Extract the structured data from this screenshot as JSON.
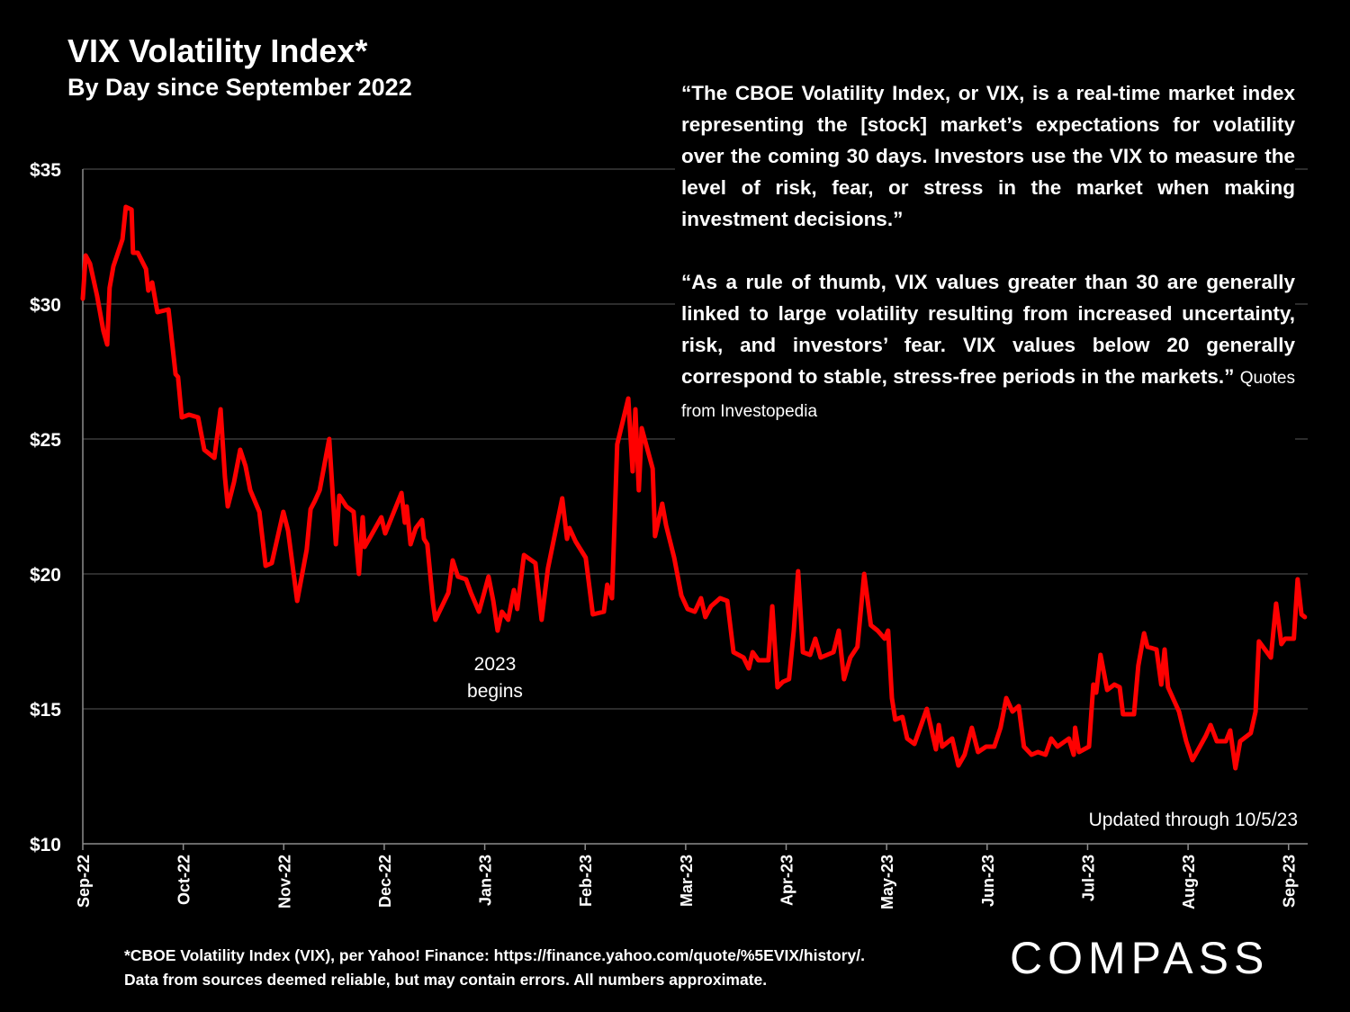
{
  "chart_data": {
    "type": "line",
    "title": "VIX Volatility Index*",
    "subtitle": "By Day since September 2022",
    "color": "#ff0000",
    "grid": true,
    "x": [
      0,
      0.6,
      1.5,
      3,
      4.3,
      5.1,
      5.6,
      6.4,
      8.3,
      9,
      10.2,
      10.5,
      11.5,
      13.2,
      13.7,
      14.5,
      15.6,
      17.9,
      19.4,
      19.9,
      20.7,
      22.2,
      24.1,
      25.4,
      27.5,
      28.8,
      29.7,
      30.3,
      31.6,
      32.9,
      34,
      35,
      36.9,
      38.2,
      39.5,
      41.9,
      42.9,
      44.8,
      46.8,
      47.6,
      48.5,
      49.5,
      51.5,
      52.9,
      53.6,
      55.1,
      56.6,
      57.7,
      58.5,
      58.9,
      60.2,
      62.4,
      63.2,
      66.6,
      67.3,
      67.7,
      68.5,
      69.6,
      70.9,
      71.3,
      72,
      73.2,
      73.7,
      76.4,
      77.3,
      78.4,
      80.1,
      81.1,
      82.8,
      83.9,
      84.8,
      85.8,
      86.7,
      87.6,
      88.9,
      90.1,
      90.8,
      92.2,
      94.6,
      95.9,
      97.2,
      100.2,
      101.2,
      101.7,
      103,
      105.1,
      106.6,
      108.9,
      109.6,
      110.6,
      111.7,
      114,
      114.9,
      115.5,
      116.2,
      116.8,
      119.1,
      119.6,
      121.1,
      121.9,
      123.6,
      125.1,
      126.4,
      127.9,
      129.2,
      130.1,
      131.3,
      133.2,
      134.7,
      136,
      138.1,
      139.2,
      140,
      141.2,
      143.3,
      144.1,
      145.2,
      146.3,
      147.6,
      148.6,
      149.5,
      150.5,
      152,
      153.1,
      154.2,
      156.9,
      158,
      159.1,
      160.4,
      161.9,
      163.3,
      164.7,
      166.1,
      167.6,
      168.3,
      169.1,
      169.8,
      171.3,
      172.3,
      173.8,
      176.4,
      178.3,
      178.9,
      179.6,
      181.7,
      183,
      184.3,
      185.8,
      187.1,
      188.8,
      190.5,
      191.8,
      193,
      194.3,
      195.6,
      196.7,
      198.3,
      199.6,
      201.2,
      202.4,
      203.7,
      206.1,
      207.1,
      207.4,
      208.2,
      210.3,
      211.2,
      211.8,
      212.7,
      214.1,
      215.6,
      216.7,
      217.4,
      219.7,
      220.6,
      221.8,
      222.5,
      224.4,
      225.4,
      226.1,
      226.8,
      229.1,
      230.6,
      231.9,
      234.7,
      235.7,
      237,
      238.9,
      239.8,
      240.9,
      241.9,
      244.1,
      245.1,
      245.8,
      248.3,
      249.4,
      250.5,
      251.3,
      253.1,
      253.9,
      254.7,
      255.4
    ],
    "values": [
      30.2,
      31.8,
      31.5,
      30.3,
      29,
      28.5,
      30.6,
      31.4,
      32.4,
      33.6,
      33.5,
      31.9,
      31.9,
      31.3,
      30.5,
      30.8,
      29.7,
      29.8,
      27.4,
      27.3,
      25.8,
      25.9,
      25.8,
      24.6,
      24.3,
      26.1,
      23.6,
      22.5,
      23.4,
      24.6,
      24,
      23.1,
      22.3,
      20.3,
      20.4,
      22.3,
      21.6,
      19,
      20.9,
      22.4,
      22.7,
      23.1,
      25,
      21.1,
      22.9,
      22.5,
      22.3,
      20,
      22.1,
      21,
      21.4,
      22.1,
      21.5,
      23,
      21.9,
      22.5,
      21.1,
      21.7,
      22,
      21.3,
      21.1,
      18.9,
      18.3,
      19.3,
      20.5,
      19.9,
      19.8,
      19.3,
      18.6,
      19.3,
      19.9,
      19,
      17.9,
      18.6,
      18.3,
      19.4,
      18.7,
      20.7,
      20.4,
      18.3,
      20.2,
      22.8,
      21.3,
      21.7,
      21.2,
      20.6,
      18.5,
      18.6,
      19.6,
      19.1,
      24.8,
      26.5,
      23.8,
      26.1,
      23.1,
      25.4,
      23.9,
      21.4,
      22.6,
      21.8,
      20.6,
      19.2,
      18.7,
      18.6,
      19.1,
      18.4,
      18.8,
      19.1,
      19,
      17.1,
      16.9,
      16.5,
      17.1,
      16.8,
      16.8,
      18.8,
      15.8,
      16,
      16.1,
      17.9,
      20.1,
      17.1,
      17,
      17.6,
      16.9,
      17.1,
      17.9,
      16.1,
      16.9,
      17.3,
      20,
      18.1,
      17.9,
      17.6,
      17.9,
      15.4,
      14.6,
      14.7,
      13.9,
      13.7,
      15,
      13.5,
      14.4,
      13.6,
      13.9,
      12.9,
      13.3,
      14.3,
      13.4,
      13.6,
      13.6,
      14.3,
      15.4,
      14.9,
      15.1,
      13.6,
      13.3,
      13.4,
      13.3,
      13.9,
      13.6,
      13.9,
      13.3,
      14.3,
      13.4,
      13.6,
      15.9,
      15.6,
      17,
      15.7,
      15.9,
      15.8,
      14.8,
      14.8,
      16.6,
      17.8,
      17.3,
      17.2,
      15.9,
      17.2,
      15.8,
      14.9,
      13.8,
      13.1,
      14,
      14.4,
      13.8,
      13.8,
      14.2,
      12.8,
      13.8,
      14.1,
      14.9,
      17.5,
      16.9,
      18.9,
      17.4,
      17.6,
      17.6,
      19.8,
      18.5,
      18.4
    ],
    "xlim": [
      0,
      256
    ],
    "xticks": [
      {
        "value": 0,
        "label": "Sep-22"
      },
      {
        "value": 21,
        "label": "Oct-22"
      },
      {
        "value": 42,
        "label": "Nov-22"
      },
      {
        "value": 63,
        "label": "Dec-22"
      },
      {
        "value": 84,
        "label": "Jan-23"
      },
      {
        "value": 105,
        "label": "Feb-23"
      },
      {
        "value": 126,
        "label": "Mar-23"
      },
      {
        "value": 147,
        "label": "Apr-23"
      },
      {
        "value": 168,
        "label": "May-23"
      },
      {
        "value": 189,
        "label": "Jun-23"
      },
      {
        "value": 210,
        "label": "Jul-23"
      },
      {
        "value": 231,
        "label": "Aug-23"
      },
      {
        "value": 252,
        "label": "Sep-23"
      }
    ],
    "ylim": [
      10,
      35
    ],
    "yticks": [
      {
        "value": 10,
        "label": "$10"
      },
      {
        "value": 15,
        "label": "$15"
      },
      {
        "value": 20,
        "label": "$20"
      },
      {
        "value": 25,
        "label": "$25"
      },
      {
        "value": 30,
        "label": "$30"
      },
      {
        "value": 35,
        "label": "$35"
      }
    ],
    "quote": [
      "“The CBOE Volatility Index, or VIX, is a real-time market index representing the [stock] market’s expectations for volatility over the coming 30 days. Investors use the VIX to measure the level of risk, fear, or stress in the market when making investment decisions.”",
      "“As a rule of thumb, VIX values greater than 30 are generally linked to large volatility resulting from increased uncertainty, risk, and investors’ fear. VIX values below 20 generally correspond to stable, stress-free periods in the markets.”"
    ],
    "quote_source": "Quotes from Investopedia",
    "annotations": [
      "2023 begins",
      "Updated through 10/5/23"
    ],
    "footnote": [
      "*CBOE Volatility Index (VIX), per Yahoo! Finance: https://finance.yahoo.com/quote/%5EVIX/history/.",
      "Data from sources deemed reliable, but may contain errors. All numbers approximate."
    ],
    "logo": "COMPASS"
  }
}
